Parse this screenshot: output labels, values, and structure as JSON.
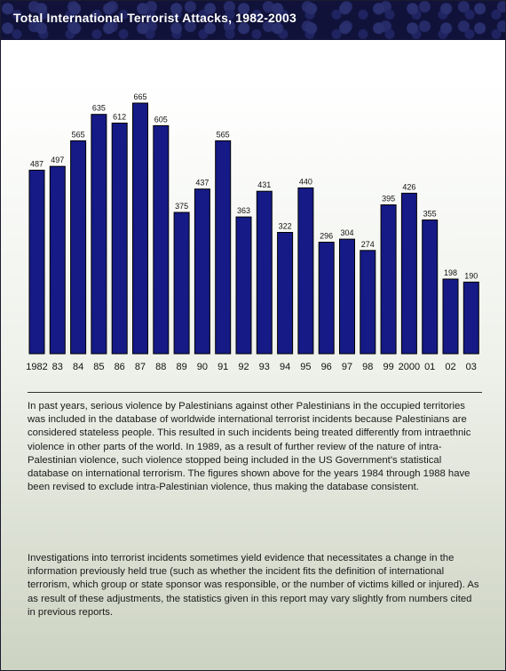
{
  "title": "Total International Terrorist Attacks, 1982-2003",
  "chart_data": {
    "type": "bar",
    "title": "Total International Terrorist Attacks, 1982-2003",
    "categories": [
      "1982",
      "83",
      "84",
      "85",
      "86",
      "87",
      "88",
      "89",
      "90",
      "91",
      "92",
      "93",
      "94",
      "95",
      "96",
      "97",
      "98",
      "99",
      "2000",
      "01",
      "02",
      "03"
    ],
    "values": [
      487,
      497,
      565,
      635,
      612,
      665,
      605,
      375,
      437,
      565,
      363,
      431,
      322,
      440,
      296,
      304,
      274,
      395,
      426,
      355,
      198,
      190
    ],
    "ylim": [
      0,
      665
    ],
    "grid": false,
    "bar_color": "#151a86"
  },
  "text": {
    "para1": "In past years, serious violence by Palestinians against other Palestinians in the occupied territories was included in the database of worldwide international terrorist incidents because Palestinians are considered stateless people. This resulted in such incidents being treated differently from intraethnic violence in other parts of the world. In 1989, as a result of further review of the nature of intra-Palestinian violence, such violence stopped being included in the US Government's statistical database on international terrorism. The figures shown above for the years 1984 through 1988 have been revised to exclude intra-Palestinian violence, thus making the database consistent.",
    "para2": "Investigations into terrorist incidents sometimes yield evidence that necessitates a change in the information previously held true (such as whether the incident fits the definition of international terrorism, which group or state sponsor was responsible, or the number of victims killed or injured). As as result of these adjustments, the statistics given in this report may vary slightly from numbers cited in previous reports."
  }
}
